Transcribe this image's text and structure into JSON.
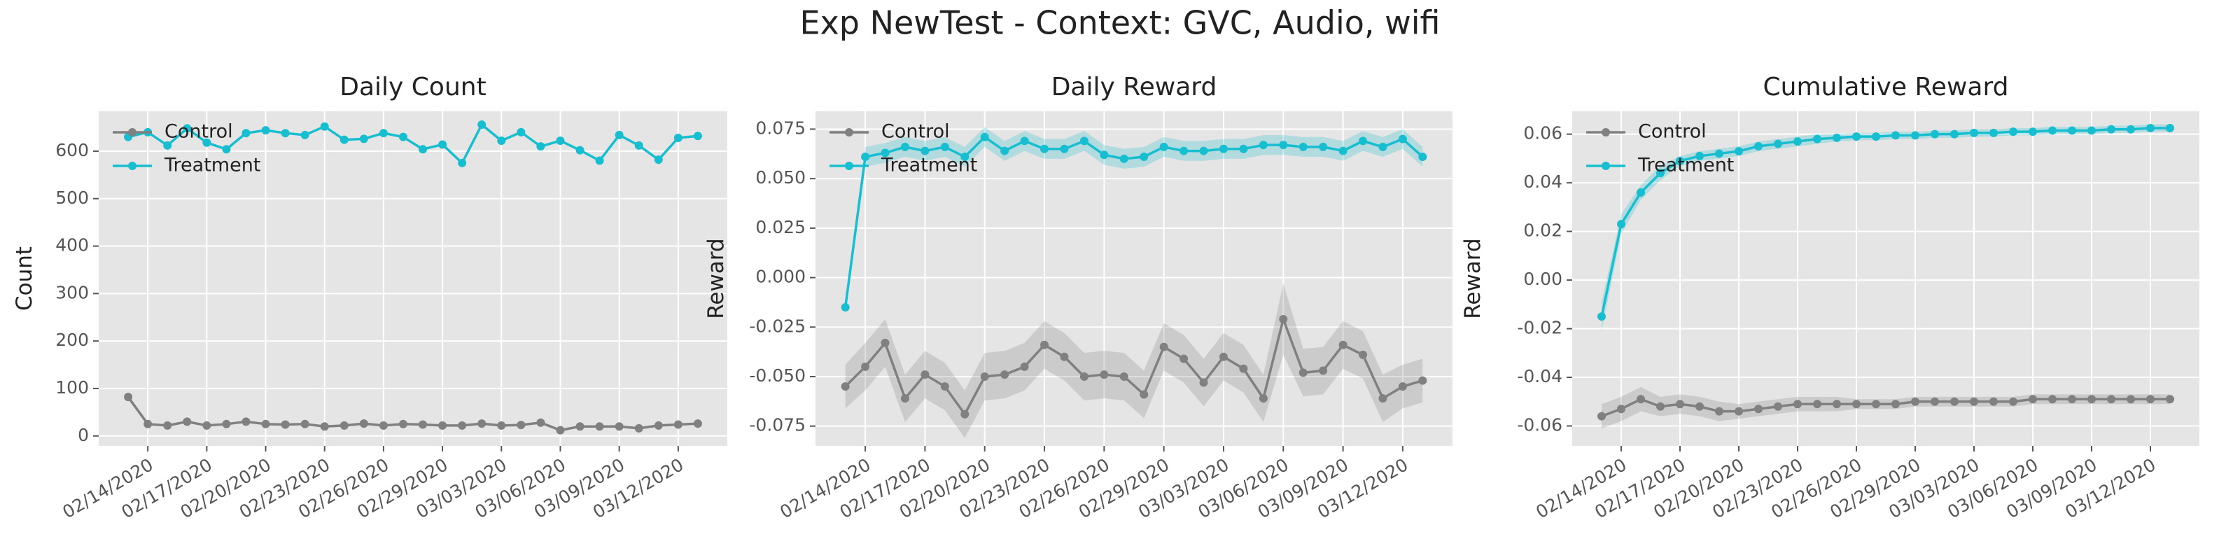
{
  "title": "Exp NewTest - Context: GVC, Audio, wifi",
  "chart_data": [
    {
      "type": "line",
      "title": "Daily Count",
      "ylabel": "Count",
      "x": [
        "02/13/2020",
        "02/14/2020",
        "02/15/2020",
        "02/16/2020",
        "02/17/2020",
        "02/18/2020",
        "02/19/2020",
        "02/20/2020",
        "02/21/2020",
        "02/22/2020",
        "02/23/2020",
        "02/24/2020",
        "02/25/2020",
        "02/26/2020",
        "02/27/2020",
        "02/28/2020",
        "02/29/2020",
        "03/01/2020",
        "03/02/2020",
        "03/03/2020",
        "03/04/2020",
        "03/05/2020",
        "03/06/2020",
        "03/07/2020",
        "03/08/2020",
        "03/09/2020",
        "03/10/2020",
        "03/11/2020",
        "03/12/2020",
        "03/13/2020"
      ],
      "xlim": [
        "02/11/2020 12:00",
        "03/14/2020 12:00"
      ],
      "xticks": [
        "02/14/2020",
        "02/17/2020",
        "02/20/2020",
        "02/23/2020",
        "02/26/2020",
        "02/29/2020",
        "03/03/2020",
        "03/06/2020",
        "03/09/2020",
        "03/12/2020"
      ],
      "ylim": [
        -21,
        684
      ],
      "yticks": [
        0,
        100,
        200,
        300,
        400,
        500,
        600
      ],
      "grid": true,
      "legend": "upper left",
      "series": [
        {
          "name": "Control",
          "color": "#808080",
          "values": [
            82,
            25,
            22,
            30,
            22,
            25,
            30,
            25,
            24,
            25,
            20,
            22,
            26,
            22,
            25,
            24,
            22,
            22,
            26,
            22,
            23,
            28,
            12,
            20,
            20,
            20,
            16,
            22,
            24,
            26
          ]
        },
        {
          "name": "Treatment",
          "color": "#17becf",
          "values": [
            630,
            640,
            612,
            648,
            618,
            604,
            638,
            644,
            638,
            634,
            652,
            624,
            626,
            638,
            630,
            604,
            614,
            575,
            656,
            622,
            640,
            610,
            622,
            602,
            580,
            634,
            612,
            582,
            628,
            632
          ]
        }
      ]
    },
    {
      "type": "line",
      "title": "Daily Reward",
      "ylabel": "Reward",
      "x": [
        "02/13/2020",
        "02/14/2020",
        "02/15/2020",
        "02/16/2020",
        "02/17/2020",
        "02/18/2020",
        "02/19/2020",
        "02/20/2020",
        "02/21/2020",
        "02/22/2020",
        "02/23/2020",
        "02/24/2020",
        "02/25/2020",
        "02/26/2020",
        "02/27/2020",
        "02/28/2020",
        "02/29/2020",
        "03/01/2020",
        "03/02/2020",
        "03/03/2020",
        "03/04/2020",
        "03/05/2020",
        "03/06/2020",
        "03/07/2020",
        "03/08/2020",
        "03/09/2020",
        "03/10/2020",
        "03/11/2020",
        "03/12/2020",
        "03/13/2020"
      ],
      "xlim": [
        "02/11/2020 12:00",
        "03/14/2020 12:00"
      ],
      "xticks": [
        "02/14/2020",
        "02/17/2020",
        "02/20/2020",
        "02/23/2020",
        "02/26/2020",
        "02/29/2020",
        "03/03/2020",
        "03/06/2020",
        "03/09/2020",
        "03/12/2020"
      ],
      "ylim": [
        -0.085,
        0.084
      ],
      "yticks": [
        {
          "value": -0.075,
          "label": "-0.075"
        },
        {
          "value": -0.05,
          "label": "-0.050"
        },
        {
          "value": -0.025,
          "label": "-0.025"
        },
        {
          "value": 0,
          "label": "0.000"
        },
        {
          "value": 0.025,
          "label": "0.025"
        },
        {
          "value": 0.05,
          "label": "0.050"
        },
        {
          "value": 0.075,
          "label": "0.075"
        }
      ],
      "grid": true,
      "legend": "upper left",
      "series": [
        {
          "name": "Control",
          "color": "#808080",
          "values": [
            -0.055,
            -0.045,
            -0.033,
            -0.061,
            -0.049,
            -0.055,
            -0.069,
            -0.05,
            -0.049,
            -0.045,
            -0.034,
            -0.04,
            -0.05,
            -0.049,
            -0.05,
            -0.059,
            -0.035,
            -0.041,
            -0.053,
            -0.04,
            -0.046,
            -0.061,
            -0.021,
            -0.048,
            -0.047,
            -0.034,
            -0.039,
            -0.061,
            -0.055,
            -0.052
          ],
          "lower": [
            -0.066,
            -0.057,
            -0.045,
            -0.073,
            -0.061,
            -0.067,
            -0.081,
            -0.062,
            -0.061,
            -0.057,
            -0.046,
            -0.052,
            -0.062,
            -0.061,
            -0.062,
            -0.071,
            -0.047,
            -0.053,
            -0.065,
            -0.052,
            -0.058,
            -0.073,
            -0.039,
            -0.06,
            -0.059,
            -0.046,
            -0.051,
            -0.073,
            -0.066,
            -0.063
          ],
          "upper": [
            -0.044,
            -0.033,
            -0.021,
            -0.049,
            -0.037,
            -0.043,
            -0.057,
            -0.038,
            -0.037,
            -0.033,
            -0.022,
            -0.028,
            -0.038,
            -0.037,
            -0.038,
            -0.047,
            -0.023,
            -0.029,
            -0.041,
            -0.028,
            -0.034,
            -0.049,
            -0.003,
            -0.036,
            -0.035,
            -0.022,
            -0.027,
            -0.049,
            -0.044,
            -0.041
          ]
        },
        {
          "name": "Treatment",
          "color": "#17becf",
          "values": [
            -0.015,
            0.061,
            0.063,
            0.066,
            0.064,
            0.066,
            0.061,
            0.071,
            0.064,
            0.069,
            0.065,
            0.065,
            0.069,
            0.062,
            0.06,
            0.061,
            0.066,
            0.064,
            0.064,
            0.065,
            0.065,
            0.067,
            0.067,
            0.066,
            0.066,
            0.064,
            0.069,
            0.066,
            0.07,
            0.061
          ],
          "lower": [
            -0.019,
            0.056,
            0.058,
            0.061,
            0.059,
            0.061,
            0.056,
            0.066,
            0.059,
            0.064,
            0.06,
            0.06,
            0.064,
            0.057,
            0.055,
            0.056,
            0.061,
            0.059,
            0.059,
            0.06,
            0.06,
            0.062,
            0.062,
            0.061,
            0.061,
            0.059,
            0.064,
            0.061,
            0.065,
            0.056
          ],
          "upper": [
            -0.011,
            0.066,
            0.068,
            0.071,
            0.069,
            0.071,
            0.066,
            0.076,
            0.069,
            0.074,
            0.07,
            0.07,
            0.074,
            0.067,
            0.065,
            0.066,
            0.071,
            0.069,
            0.069,
            0.07,
            0.07,
            0.072,
            0.072,
            0.071,
            0.071,
            0.069,
            0.074,
            0.071,
            0.075,
            0.066
          ]
        }
      ]
    },
    {
      "type": "line",
      "title": "Cumulative Reward",
      "ylabel": "Reward",
      "x": [
        "02/13/2020",
        "02/14/2020",
        "02/15/2020",
        "02/16/2020",
        "02/17/2020",
        "02/18/2020",
        "02/19/2020",
        "02/20/2020",
        "02/21/2020",
        "02/22/2020",
        "02/23/2020",
        "02/24/2020",
        "02/25/2020",
        "02/26/2020",
        "02/27/2020",
        "02/28/2020",
        "02/29/2020",
        "03/01/2020",
        "03/02/2020",
        "03/03/2020",
        "03/04/2020",
        "03/05/2020",
        "03/06/2020",
        "03/07/2020",
        "03/08/2020",
        "03/09/2020",
        "03/10/2020",
        "03/11/2020",
        "03/12/2020",
        "03/13/2020"
      ],
      "xlim": [
        "02/11/2020 12:00",
        "03/14/2020 12:00"
      ],
      "xticks": [
        "02/14/2020",
        "02/17/2020",
        "02/20/2020",
        "02/23/2020",
        "02/26/2020",
        "02/29/2020",
        "03/03/2020",
        "03/06/2020",
        "03/09/2020",
        "03/12/2020"
      ],
      "ylim": [
        -0.0682,
        0.0694
      ],
      "yticks": [
        {
          "value": -0.06,
          "label": "-0.06"
        },
        {
          "value": -0.04,
          "label": "-0.04"
        },
        {
          "value": -0.02,
          "label": "-0.02"
        },
        {
          "value": 0,
          "label": "0.00"
        },
        {
          "value": 0.02,
          "label": "0.02"
        },
        {
          "value": 0.04,
          "label": "0.04"
        },
        {
          "value": 0.06,
          "label": "0.06"
        }
      ],
      "grid": true,
      "legend": "upper left",
      "series": [
        {
          "name": "Control",
          "color": "#808080",
          "values": [
            -0.056,
            -0.053,
            -0.049,
            -0.052,
            -0.051,
            -0.052,
            -0.054,
            -0.054,
            -0.053,
            -0.052,
            -0.051,
            -0.051,
            -0.051,
            -0.051,
            -0.051,
            -0.051,
            -0.05,
            -0.05,
            -0.05,
            -0.05,
            -0.05,
            -0.05,
            -0.049,
            -0.049,
            -0.049,
            -0.049,
            -0.049,
            -0.049,
            -0.049,
            -0.049
          ],
          "lower": [
            -0.061,
            -0.058,
            -0.054,
            -0.056,
            -0.055,
            -0.056,
            -0.058,
            -0.057,
            -0.056,
            -0.055,
            -0.054,
            -0.054,
            -0.054,
            -0.053,
            -0.053,
            -0.053,
            -0.052,
            -0.052,
            -0.052,
            -0.052,
            -0.052,
            -0.052,
            -0.051,
            -0.051,
            -0.051,
            -0.051,
            -0.051,
            -0.051,
            -0.051,
            -0.051
          ],
          "upper": [
            -0.051,
            -0.048,
            -0.044,
            -0.048,
            -0.047,
            -0.048,
            -0.05,
            -0.051,
            -0.05,
            -0.049,
            -0.048,
            -0.048,
            -0.048,
            -0.049,
            -0.049,
            -0.049,
            -0.048,
            -0.048,
            -0.048,
            -0.048,
            -0.048,
            -0.048,
            -0.047,
            -0.047,
            -0.047,
            -0.047,
            -0.047,
            -0.047,
            -0.047,
            -0.047
          ]
        },
        {
          "name": "Treatment",
          "color": "#17becf",
          "values": [
            -0.015,
            0.023,
            0.036,
            0.044,
            0.049,
            0.051,
            0.052,
            0.053,
            0.055,
            0.056,
            0.057,
            0.058,
            0.0585,
            0.059,
            0.059,
            0.0595,
            0.0595,
            0.06,
            0.06,
            0.0605,
            0.0605,
            0.061,
            0.061,
            0.0615,
            0.0615,
            0.0615,
            0.062,
            0.062,
            0.0625,
            0.0625
          ],
          "lower": [
            -0.021,
            0.019,
            0.033,
            0.041,
            0.047,
            0.049,
            0.05,
            0.051,
            0.053,
            0.054,
            0.055,
            0.056,
            0.057,
            0.0575,
            0.0575,
            0.058,
            0.058,
            0.0585,
            0.0585,
            0.059,
            0.059,
            0.0595,
            0.0595,
            0.06,
            0.06,
            0.06,
            0.0605,
            0.0605,
            0.061,
            0.061
          ],
          "upper": [
            -0.009,
            0.027,
            0.039,
            0.047,
            0.051,
            0.053,
            0.054,
            0.055,
            0.057,
            0.058,
            0.059,
            0.06,
            0.06,
            0.0605,
            0.0605,
            0.061,
            0.061,
            0.0615,
            0.0615,
            0.062,
            0.062,
            0.0625,
            0.0625,
            0.063,
            0.063,
            0.063,
            0.0635,
            0.0635,
            0.064,
            0.064
          ]
        }
      ]
    }
  ]
}
